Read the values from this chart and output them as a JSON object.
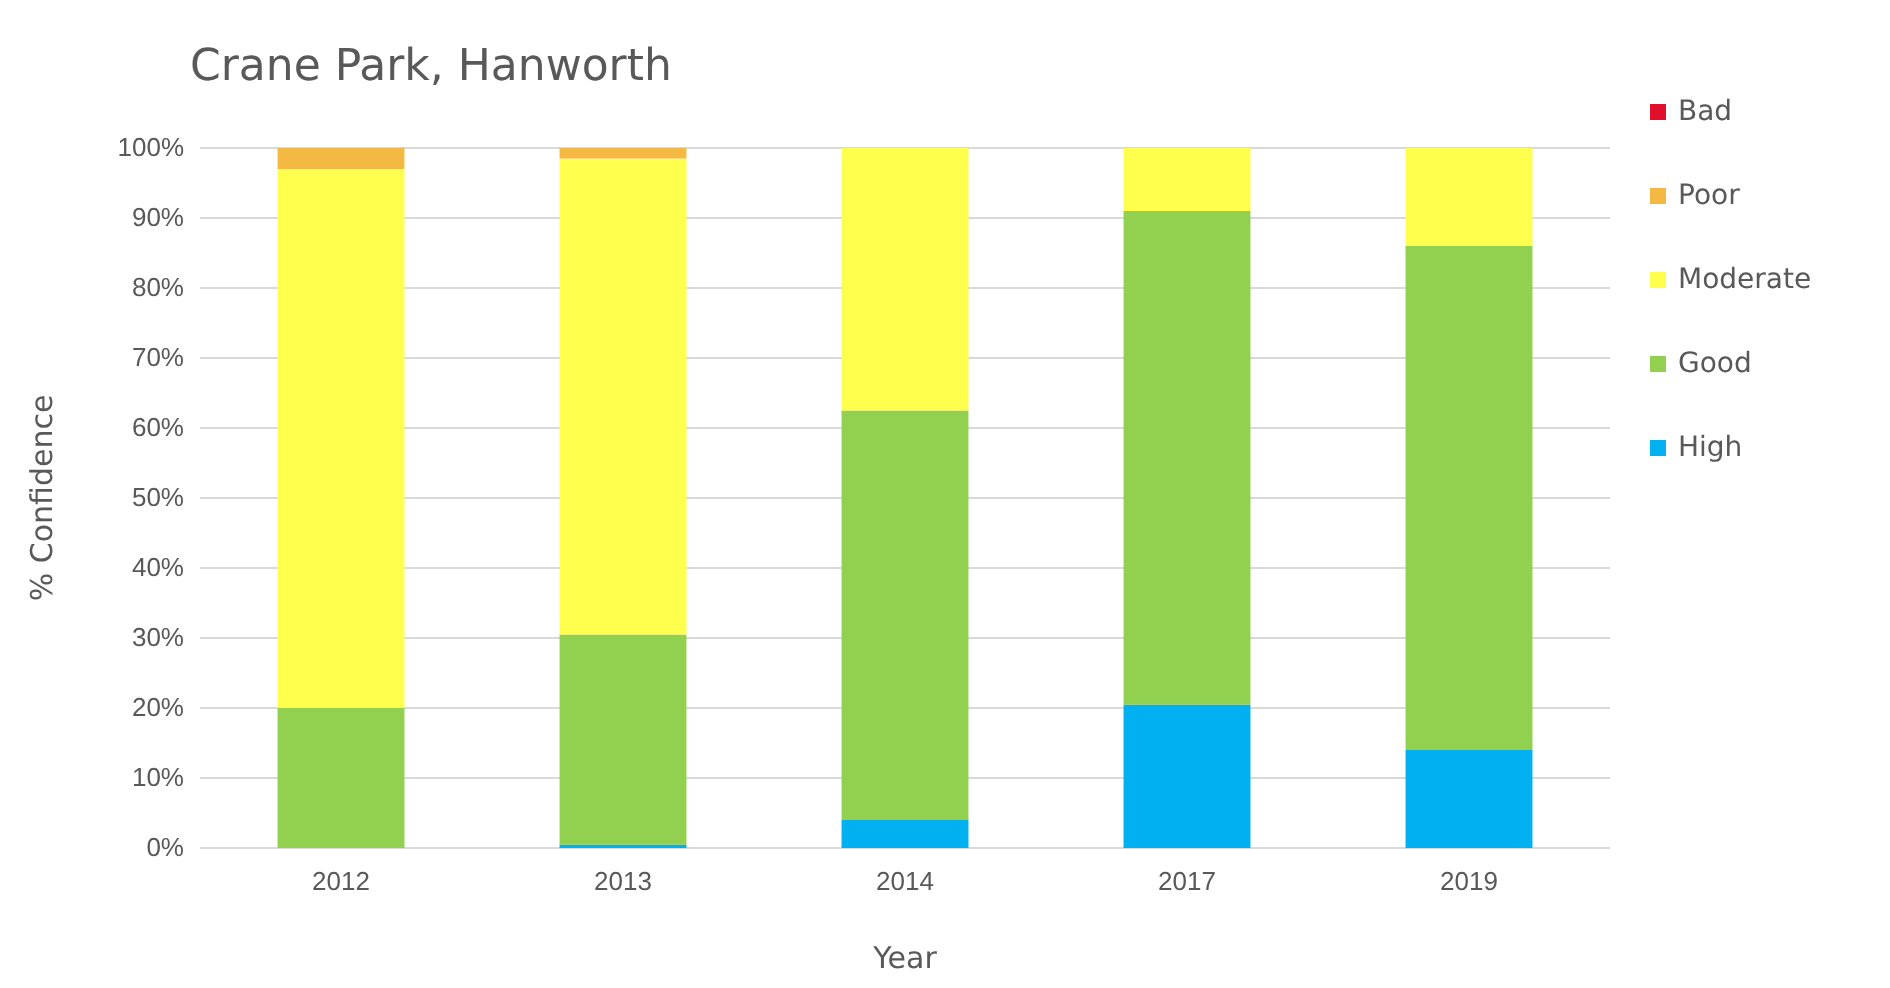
{
  "chart_data": {
    "type": "bar",
    "title": "Crane Park, Hanworth",
    "xlabel": "Year",
    "ylabel": "% Confidence",
    "categories": [
      "2012",
      "2013",
      "2014",
      "2017",
      "2019"
    ],
    "stacked": true,
    "series": [
      {
        "name": "High",
        "color": "#00b0f0",
        "values": [
          0,
          0.5,
          4,
          20.5,
          14
        ]
      },
      {
        "name": "Good",
        "color": "#92d050",
        "values": [
          20,
          30,
          58.5,
          70.5,
          72
        ]
      },
      {
        "name": "Moderate",
        "color": "#ffff4d",
        "values": [
          77,
          68,
          37.5,
          9,
          14
        ]
      },
      {
        "name": "Poor",
        "color": "#f4b942",
        "values": [
          3,
          1.5,
          0,
          0,
          0
        ]
      },
      {
        "name": "Bad",
        "color": "#e0102a",
        "values": [
          0,
          0,
          0,
          0,
          0
        ]
      }
    ],
    "ylim": [
      0,
      100
    ],
    "yticks": [
      {
        "value": 0,
        "label": "0%"
      },
      {
        "value": 10,
        "label": "10%"
      },
      {
        "value": 20,
        "label": "20%"
      },
      {
        "value": 30,
        "label": "30%"
      },
      {
        "value": 40,
        "label": "40%"
      },
      {
        "value": 50,
        "label": "50%"
      },
      {
        "value": 60,
        "label": "60%"
      },
      {
        "value": 70,
        "label": "70%"
      },
      {
        "value": 80,
        "label": "80%"
      },
      {
        "value": 90,
        "label": "90%"
      },
      {
        "value": 100,
        "label": "100%"
      }
    ],
    "grid": "y",
    "legend": "right"
  }
}
